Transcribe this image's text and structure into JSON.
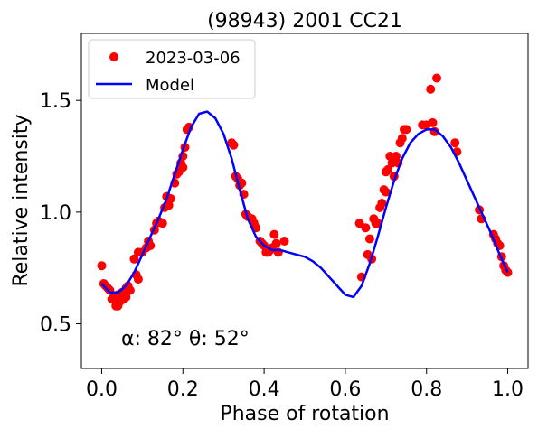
{
  "chart_data": {
    "type": "scatter",
    "title": "(98943) 2001 CC21",
    "xlabel": "Phase of rotation",
    "ylabel": "Relative intensity",
    "xlim": [
      -0.05,
      1.05
    ],
    "ylim": [
      0.3,
      1.8
    ],
    "xticks": [
      0.0,
      0.2,
      0.4,
      0.6,
      0.8,
      1.0
    ],
    "xtick_labels": [
      "0.0",
      "0.2",
      "0.4",
      "0.6",
      "0.8",
      "1.0"
    ],
    "yticks": [
      0.5,
      1.0,
      1.5
    ],
    "ytick_labels": [
      "0.5",
      "1.0",
      "1.5"
    ],
    "grid": false,
    "legend_placement": "top-left",
    "annotation": "α: 82° θ: 52°",
    "colors": {
      "observed": "#ff0000",
      "model": "#0000ff"
    },
    "series": [
      {
        "name": "2023-03-06",
        "kind": "scatter",
        "points": [
          [
            0.0,
            0.76
          ],
          [
            0.005,
            0.68
          ],
          [
            0.01,
            0.67
          ],
          [
            0.015,
            0.66
          ],
          [
            0.02,
            0.65
          ],
          [
            0.025,
            0.61
          ],
          [
            0.03,
            0.62
          ],
          [
            0.035,
            0.6
          ],
          [
            0.035,
            0.58
          ],
          [
            0.04,
            0.63
          ],
          [
            0.04,
            0.58
          ],
          [
            0.045,
            0.6
          ],
          [
            0.05,
            0.64
          ],
          [
            0.055,
            0.61
          ],
          [
            0.06,
            0.66
          ],
          [
            0.06,
            0.62
          ],
          [
            0.065,
            0.67
          ],
          [
            0.07,
            0.65
          ],
          [
            0.08,
            0.79
          ],
          [
            0.085,
            0.72
          ],
          [
            0.09,
            0.82
          ],
          [
            0.09,
            0.7
          ],
          [
            0.1,
            0.82
          ],
          [
            0.11,
            0.84
          ],
          [
            0.115,
            0.87
          ],
          [
            0.12,
            0.85
          ],
          [
            0.13,
            0.92
          ],
          [
            0.135,
            0.95
          ],
          [
            0.14,
            0.96
          ],
          [
            0.15,
            0.95
          ],
          [
            0.155,
            1.02
          ],
          [
            0.16,
            1.07
          ],
          [
            0.165,
            1.03
          ],
          [
            0.17,
            1.06
          ],
          [
            0.18,
            1.13
          ],
          [
            0.185,
            1.17
          ],
          [
            0.19,
            1.18
          ],
          [
            0.195,
            1.22
          ],
          [
            0.2,
            1.25
          ],
          [
            0.2,
            1.2
          ],
          [
            0.205,
            1.29
          ],
          [
            0.21,
            1.37
          ],
          [
            0.215,
            1.38
          ],
          [
            0.32,
            1.31
          ],
          [
            0.325,
            1.3
          ],
          [
            0.33,
            1.16
          ],
          [
            0.335,
            1.15
          ],
          [
            0.34,
            1.12
          ],
          [
            0.345,
            1.13
          ],
          [
            0.35,
            1.08
          ],
          [
            0.355,
            0.99
          ],
          [
            0.36,
            0.98
          ],
          [
            0.37,
            0.97
          ],
          [
            0.375,
            0.95
          ],
          [
            0.38,
            0.93
          ],
          [
            0.39,
            0.87
          ],
          [
            0.395,
            0.86
          ],
          [
            0.4,
            0.85
          ],
          [
            0.405,
            0.82
          ],
          [
            0.41,
            0.82
          ],
          [
            0.415,
            0.83
          ],
          [
            0.42,
            0.84
          ],
          [
            0.425,
            0.9
          ],
          [
            0.43,
            0.86
          ],
          [
            0.435,
            0.82
          ],
          [
            0.45,
            0.87
          ],
          [
            0.635,
            0.95
          ],
          [
            0.64,
            0.71
          ],
          [
            0.65,
            0.93
          ],
          [
            0.655,
            0.81
          ],
          [
            0.66,
            0.88
          ],
          [
            0.665,
            0.79
          ],
          [
            0.67,
            0.97
          ],
          [
            0.675,
            0.95
          ],
          [
            0.68,
            0.95
          ],
          [
            0.685,
            1.02
          ],
          [
            0.69,
            1.04
          ],
          [
            0.695,
            1.1
          ],
          [
            0.7,
            1.09
          ],
          [
            0.7,
            1.18
          ],
          [
            0.705,
            1.19
          ],
          [
            0.71,
            1.25
          ],
          [
            0.715,
            1.22
          ],
          [
            0.72,
            1.16
          ],
          [
            0.725,
            1.25
          ],
          [
            0.73,
            1.22
          ],
          [
            0.735,
            1.31
          ],
          [
            0.74,
            1.33
          ],
          [
            0.745,
            1.37
          ],
          [
            0.75,
            1.37
          ],
          [
            0.79,
            1.39
          ],
          [
            0.8,
            1.39
          ],
          [
            0.81,
            1.55
          ],
          [
            0.815,
            1.4
          ],
          [
            0.82,
            1.36
          ],
          [
            0.825,
            1.6
          ],
          [
            0.87,
            1.31
          ],
          [
            0.875,
            1.27
          ],
          [
            0.93,
            1.01
          ],
          [
            0.935,
            0.97
          ],
          [
            0.965,
            0.9
          ],
          [
            0.97,
            0.88
          ],
          [
            0.975,
            0.86
          ],
          [
            0.98,
            0.85
          ],
          [
            0.985,
            0.8
          ],
          [
            0.99,
            0.76
          ],
          [
            0.995,
            0.74
          ],
          [
            1.0,
            0.73
          ]
        ]
      },
      {
        "name": "Model",
        "kind": "line",
        "points": [
          [
            0.0,
            0.68
          ],
          [
            0.02,
            0.64
          ],
          [
            0.04,
            0.64
          ],
          [
            0.06,
            0.67
          ],
          [
            0.08,
            0.73
          ],
          [
            0.1,
            0.81
          ],
          [
            0.12,
            0.89
          ],
          [
            0.14,
            0.97
          ],
          [
            0.16,
            1.06
          ],
          [
            0.18,
            1.17
          ],
          [
            0.2,
            1.28
          ],
          [
            0.22,
            1.38
          ],
          [
            0.24,
            1.44
          ],
          [
            0.26,
            1.45
          ],
          [
            0.28,
            1.42
          ],
          [
            0.3,
            1.35
          ],
          [
            0.32,
            1.24
          ],
          [
            0.34,
            1.1
          ],
          [
            0.36,
            0.97
          ],
          [
            0.38,
            0.89
          ],
          [
            0.4,
            0.85
          ],
          [
            0.42,
            0.83
          ],
          [
            0.44,
            0.83
          ],
          [
            0.46,
            0.82
          ],
          [
            0.48,
            0.81
          ],
          [
            0.5,
            0.8
          ],
          [
            0.52,
            0.78
          ],
          [
            0.54,
            0.75
          ],
          [
            0.56,
            0.71
          ],
          [
            0.58,
            0.67
          ],
          [
            0.6,
            0.63
          ],
          [
            0.62,
            0.62
          ],
          [
            0.64,
            0.67
          ],
          [
            0.66,
            0.77
          ],
          [
            0.68,
            0.89
          ],
          [
            0.7,
            1.02
          ],
          [
            0.72,
            1.14
          ],
          [
            0.74,
            1.24
          ],
          [
            0.76,
            1.31
          ],
          [
            0.78,
            1.35
          ],
          [
            0.8,
            1.37
          ],
          [
            0.82,
            1.37
          ],
          [
            0.84,
            1.34
          ],
          [
            0.86,
            1.29
          ],
          [
            0.88,
            1.22
          ],
          [
            0.9,
            1.14
          ],
          [
            0.92,
            1.06
          ],
          [
            0.94,
            0.98
          ],
          [
            0.96,
            0.9
          ],
          [
            0.98,
            0.81
          ],
          [
            1.0,
            0.73
          ]
        ]
      }
    ]
  }
}
